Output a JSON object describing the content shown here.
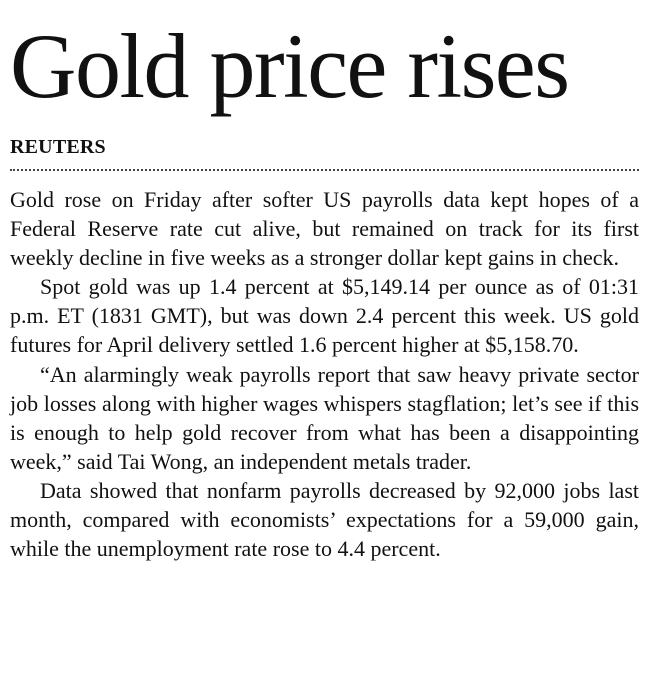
{
  "article": {
    "headline": "Gold price rises",
    "byline": "REUTERS",
    "paragraphs": [
      "Gold rose on Friday after softer US payrolls data kept hopes of a Federal Reserve rate cut alive, but remained on track for its first weekly decline in five weeks as a stronger dollar kept gains in check.",
      "Spot gold was up 1.4 percent at $5,149.14 per ounce as of 01:31 p.m. ET (1831 GMT), but was down 2.4 percent this week. US gold futures for April delivery settled 1.6 percent higher at $5,158.70.",
      "“An alarmingly weak payrolls report that saw heavy private sector job losses along with higher wages whispers stagflation; let’s see if this is enough to help gold recover from what has been a disappointing week,” said Tai Wong, an independent metals trader.",
      "Data showed that nonfarm payrolls decreased by 92,000 jobs last month, compared with economists’ expectations for a 59,000 gain, while the unemployment rate rose to 4.4 percent."
    ]
  }
}
